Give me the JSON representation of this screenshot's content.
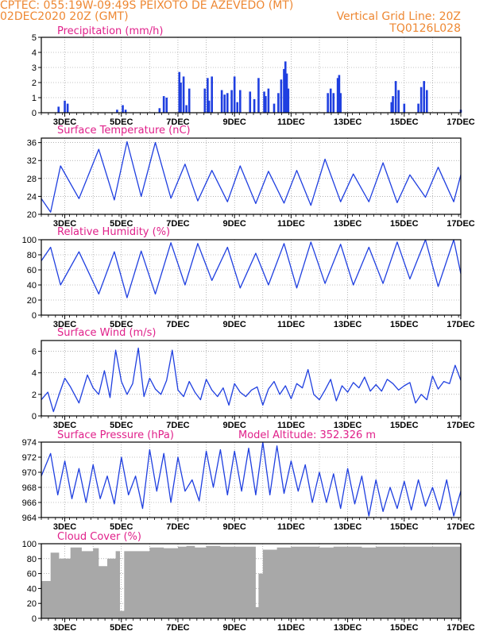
{
  "header": {
    "line1": "CPTEC:   055:19W-09:49S   PEIXOTO DE AZEVEDO (MT)",
    "line2": "02DEC2020 20Z (GMT)",
    "grid_note": "Vertical Grid Line: 20Z",
    "code": "TQ0126L028"
  },
  "colors": {
    "header": "#ee8833",
    "title": "#e0208a",
    "line": "#1f3fe0",
    "bar": "#1f3fe0",
    "cloud": "#a8a8a8",
    "grid": "#888888"
  },
  "x_ticks": [
    "3DEC",
    "5DEC",
    "7DEC",
    "9DEC",
    "11DEC",
    "13DEC",
    "15DEC",
    "17DEC"
  ],
  "chart_data": [
    {
      "type": "bar",
      "title": "Precipitation (mm/h)",
      "ylim": [
        0,
        5
      ],
      "yticks": [
        0,
        1,
        2,
        3,
        4,
        5
      ],
      "x_days": [
        2.78,
        3.0,
        3.1,
        4.85,
        5.05,
        5.15,
        6.35,
        6.5,
        6.6,
        7.05,
        7.1,
        7.2,
        7.3,
        7.4,
        7.95,
        8.05,
        8.1,
        8.2,
        8.55,
        8.65,
        8.75,
        8.9,
        9.0,
        9.1,
        9.2,
        9.55,
        9.7,
        9.85,
        10.05,
        10.1,
        10.2,
        10.4,
        10.55,
        10.65,
        10.75,
        10.8,
        10.85,
        10.9,
        12.3,
        12.4,
        12.5,
        12.65,
        12.7,
        12.75,
        14.55,
        14.6,
        14.7,
        14.8,
        15.0,
        15.5,
        15.6,
        15.7,
        15.8,
        17.0
      ],
      "values": [
        0.4,
        0.8,
        0.6,
        0.2,
        0.5,
        0.2,
        0.3,
        1.1,
        1.0,
        2.7,
        2.0,
        2.4,
        0.5,
        1.6,
        1.6,
        2.3,
        0.8,
        2.4,
        1.5,
        1.2,
        1.3,
        1.5,
        2.4,
        0.7,
        1.5,
        1.4,
        0.9,
        2.3,
        1.4,
        1.1,
        1.6,
        0.6,
        1.3,
        2.2,
        2.9,
        3.4,
        2.6,
        1.6,
        1.3,
        1.6,
        1.3,
        2.3,
        2.5,
        1.3,
        0.7,
        1.1,
        2.1,
        1.5,
        0.6,
        0.6,
        1.7,
        2.1,
        1.5,
        0.2
      ]
    },
    {
      "type": "line",
      "title": "Surface Temperature (nC)",
      "ylim": [
        20,
        37
      ],
      "yticks": [
        20,
        24,
        28,
        32,
        36
      ],
      "x_days": [
        2.17,
        2.5,
        2.85,
        3.5,
        4.2,
        4.75,
        5.2,
        5.7,
        6.2,
        6.75,
        7.25,
        7.7,
        8.2,
        8.75,
        9.2,
        9.75,
        10.2,
        10.75,
        11.2,
        11.7,
        12.2,
        12.75,
        13.2,
        13.75,
        14.25,
        14.75,
        15.2,
        15.75,
        16.2,
        16.75,
        17.0
      ],
      "values": [
        23.5,
        20.5,
        30.8,
        23.5,
        34.5,
        23.2,
        36.2,
        24.0,
        36.0,
        23.6,
        31.2,
        23.0,
        29.8,
        22.8,
        30.8,
        22.4,
        29.6,
        22.5,
        29.8,
        22.0,
        32.3,
        22.8,
        29.0,
        22.8,
        31.5,
        22.6,
        28.8,
        23.8,
        30.5,
        22.8,
        28.8
      ]
    },
    {
      "type": "line",
      "title": "Relative Humidity (%)",
      "ylim": [
        0,
        100
      ],
      "yticks": [
        0,
        20,
        40,
        60,
        80,
        100
      ],
      "x_days": [
        2.17,
        2.5,
        2.85,
        3.5,
        4.2,
        4.75,
        5.2,
        5.7,
        6.2,
        6.75,
        7.25,
        7.7,
        8.2,
        8.75,
        9.2,
        9.75,
        10.2,
        10.75,
        11.2,
        11.7,
        12.2,
        12.75,
        13.2,
        13.75,
        14.25,
        14.75,
        15.2,
        15.75,
        16.2,
        16.75,
        17.0
      ],
      "values": [
        72,
        90,
        40,
        84,
        28,
        84,
        23,
        85,
        28,
        96,
        40,
        95,
        46,
        90,
        36,
        82,
        40,
        95,
        36,
        97,
        42,
        94,
        40,
        90,
        42,
        97,
        48,
        100,
        38,
        100,
        55
      ]
    },
    {
      "type": "line",
      "title": "Surface Wind (m/s)",
      "ylim": [
        0,
        7
      ],
      "yticks": [
        0,
        2,
        4,
        6
      ],
      "x_days": [
        2.17,
        2.4,
        2.6,
        2.8,
        3.0,
        3.2,
        3.5,
        3.8,
        4.0,
        4.2,
        4.4,
        4.6,
        4.8,
        5.0,
        5.2,
        5.4,
        5.6,
        5.8,
        6.0,
        6.2,
        6.4,
        6.6,
        6.8,
        7.0,
        7.2,
        7.4,
        7.6,
        7.8,
        8.0,
        8.2,
        8.4,
        8.6,
        8.8,
        9.0,
        9.2,
        9.4,
        9.6,
        9.8,
        10.0,
        10.2,
        10.4,
        10.6,
        10.8,
        11.0,
        11.2,
        11.4,
        11.6,
        11.8,
        12.0,
        12.2,
        12.4,
        12.6,
        12.8,
        13.0,
        13.2,
        13.4,
        13.6,
        13.8,
        14.0,
        14.2,
        14.4,
        14.6,
        14.8,
        15.0,
        15.2,
        15.4,
        15.6,
        15.8,
        16.0,
        16.2,
        16.4,
        16.6,
        16.8,
        17.0
      ],
      "values": [
        1.5,
        2.2,
        0.4,
        2.0,
        3.5,
        2.7,
        1.2,
        3.8,
        2.6,
        2.0,
        4.2,
        1.7,
        6.1,
        3.2,
        2.0,
        3.0,
        6.3,
        1.8,
        3.5,
        2.5,
        2.0,
        3.3,
        6.1,
        2.4,
        1.8,
        3.2,
        2.2,
        1.5,
        3.4,
        2.4,
        1.8,
        2.6,
        1.0,
        3.0,
        2.2,
        1.8,
        2.4,
        2.7,
        1.0,
        2.5,
        3.2,
        2.0,
        2.8,
        1.6,
        3.0,
        2.6,
        4.3,
        2.0,
        1.5,
        2.4,
        3.4,
        1.4,
        2.8,
        2.2,
        3.1,
        2.6,
        3.6,
        2.3,
        2.9,
        2.3,
        3.4,
        3.0,
        2.4,
        2.8,
        3.1,
        1.2,
        2.0,
        1.5,
        3.7,
        2.5,
        3.2,
        3.0,
        4.7,
        3.3
      ]
    },
    {
      "type": "line",
      "title": "Surface Pressure (hPa)",
      "annotation": "Model Altitude: 352.326 m",
      "ylim": [
        964,
        974
      ],
      "yticks": [
        964,
        966,
        968,
        970,
        972,
        974
      ],
      "x_days": [
        2.17,
        2.5,
        2.75,
        3.0,
        3.25,
        3.5,
        3.75,
        4.0,
        4.25,
        4.5,
        4.75,
        5.0,
        5.25,
        5.5,
        5.75,
        6.0,
        6.25,
        6.5,
        6.75,
        7.0,
        7.25,
        7.5,
        7.75,
        8.0,
        8.25,
        8.5,
        8.75,
        9.0,
        9.25,
        9.5,
        9.75,
        10.0,
        10.25,
        10.5,
        10.75,
        11.0,
        11.25,
        11.5,
        11.75,
        12.0,
        12.25,
        12.5,
        12.75,
        13.0,
        13.25,
        13.5,
        13.75,
        14.0,
        14.25,
        14.5,
        14.75,
        15.0,
        15.25,
        15.5,
        15.75,
        16.0,
        16.25,
        16.5,
        16.75,
        17.0
      ],
      "values": [
        969.5,
        972.5,
        967.0,
        971.5,
        966.5,
        970.5,
        966.0,
        971.0,
        966.5,
        969.5,
        965.8,
        972.0,
        967.0,
        969.5,
        965.2,
        973.0,
        967.5,
        972.5,
        966.0,
        972.0,
        967.5,
        969.0,
        966.2,
        972.8,
        968.0,
        973.0,
        967.0,
        972.8,
        967.5,
        973.2,
        967.0,
        974.0,
        967.0,
        973.5,
        967.2,
        971.5,
        967.5,
        971.0,
        966.0,
        970.0,
        966.0,
        969.8,
        965.2,
        970.5,
        965.8,
        969.5,
        964.2,
        969.0,
        964.8,
        968.0,
        965.2,
        968.8,
        965.0,
        969.0,
        965.5,
        968.0,
        965.0,
        969.0,
        964.2,
        967.5
      ]
    },
    {
      "type": "area",
      "title": "Cloud Cover (%)",
      "ylim": [
        0,
        100
      ],
      "yticks": [
        0,
        20,
        40,
        60,
        80,
        100
      ],
      "x_days": [
        2.17,
        2.5,
        2.8,
        3.2,
        3.6,
        4.0,
        4.2,
        4.5,
        4.8,
        4.95,
        5.1,
        5.5,
        6.0,
        6.5,
        7.0,
        7.3,
        7.6,
        8.0,
        8.5,
        9.0,
        9.5,
        9.75,
        9.85,
        10.0,
        10.5,
        11.0,
        11.5,
        12.0,
        12.5,
        13.0,
        13.5,
        14.0,
        14.5,
        15.0,
        15.5,
        16.0,
        16.5,
        17.0
      ],
      "values": [
        50,
        88,
        80,
        95,
        90,
        94,
        70,
        80,
        90,
        10,
        90,
        90,
        95,
        94,
        96,
        97,
        95,
        97,
        96,
        96,
        96,
        15,
        60,
        92,
        95,
        96,
        96,
        95,
        96,
        96,
        95,
        96,
        96,
        96,
        96,
        96,
        96,
        96
      ]
    }
  ]
}
